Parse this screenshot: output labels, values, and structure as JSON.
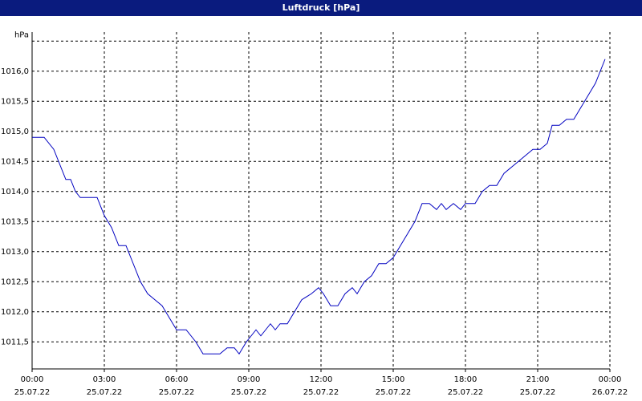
{
  "chart_data": {
    "type": "line",
    "title": "Luftdruck [hPa]",
    "x": [
      0,
      0.5,
      0.9,
      1.1,
      1.4,
      1.6,
      1.8,
      2.0,
      2.3,
      2.7,
      3.0,
      3.3,
      3.6,
      3.9,
      4.2,
      4.5,
      4.8,
      5.1,
      5.4,
      5.7,
      6.0,
      6.4,
      6.8,
      7.1,
      7.5,
      7.8,
      8.1,
      8.4,
      8.6,
      8.9,
      9.1,
      9.3,
      9.5,
      9.7,
      9.9,
      10.1,
      10.3,
      10.6,
      10.9,
      11.2,
      11.6,
      11.9,
      12.1,
      12.4,
      12.7,
      13.0,
      13.3,
      13.5,
      13.8,
      14.1,
      14.4,
      14.7,
      15.0,
      15.3,
      15.6,
      15.9,
      16.2,
      16.5,
      16.8,
      17.0,
      17.2,
      17.5,
      17.8,
      18.0,
      18.2,
      18.4,
      18.7,
      19.0,
      19.3,
      19.6,
      19.9,
      20.2,
      20.5,
      20.8,
      21.1,
      21.4,
      21.6,
      21.9,
      22.2,
      22.5,
      22.8,
      23.1,
      23.4,
      23.6,
      23.8
    ],
    "series": [
      {
        "name": "Luftdruck",
        "color": "#0000c0",
        "values": [
          1014.9,
          1014.9,
          1014.7,
          1014.5,
          1014.2,
          1014.2,
          1014.0,
          1013.9,
          1013.9,
          1013.9,
          1013.6,
          1013.4,
          1013.1,
          1013.1,
          1012.8,
          1012.5,
          1012.3,
          1012.2,
          1012.1,
          1011.9,
          1011.7,
          1011.7,
          1011.5,
          1011.3,
          1011.3,
          1011.3,
          1011.4,
          1011.4,
          1011.3,
          1011.5,
          1011.6,
          1011.7,
          1011.6,
          1011.7,
          1011.8,
          1011.7,
          1011.8,
          1011.8,
          1012.0,
          1012.2,
          1012.3,
          1012.4,
          1012.3,
          1012.1,
          1012.1,
          1012.3,
          1012.4,
          1012.3,
          1012.5,
          1012.6,
          1012.8,
          1012.8,
          1012.9,
          1013.1,
          1013.3,
          1013.5,
          1013.8,
          1013.8,
          1013.7,
          1013.8,
          1013.7,
          1013.8,
          1013.7,
          1013.8,
          1013.8,
          1013.8,
          1014.0,
          1014.1,
          1014.1,
          1014.3,
          1014.4,
          1014.5,
          1014.6,
          1014.7,
          1014.7,
          1014.8,
          1015.1,
          1015.1,
          1015.2,
          1015.2,
          1015.4,
          1015.6,
          1015.8,
          1016.0,
          1016.2
        ]
      }
    ],
    "xlim": [
      0,
      24
    ],
    "ylim": [
      1011.05,
      1016.65
    ],
    "xticks": [
      {
        "value": 0,
        "label": "00:00"
      },
      {
        "value": 3,
        "label": "03:00"
      },
      {
        "value": 6,
        "label": "06:00"
      },
      {
        "value": 9,
        "label": "09:00"
      },
      {
        "value": 12,
        "label": "12:00"
      },
      {
        "value": 15,
        "label": "15:00"
      },
      {
        "value": 18,
        "label": "18:00"
      },
      {
        "value": 21,
        "label": "21:00"
      },
      {
        "value": 24,
        "label": "00:00"
      }
    ],
    "xtick_dates": [
      "25.07.22",
      "25.07.22",
      "25.07.22",
      "25.07.22",
      "25.07.22",
      "25.07.22",
      "25.07.22",
      "25.07.22",
      "26.07.22"
    ],
    "yticks": [
      {
        "value": 1011.5,
        "label": "1011,5"
      },
      {
        "value": 1012,
        "label": "1012,0"
      },
      {
        "value": 1012.5,
        "label": "1012,5"
      },
      {
        "value": 1013,
        "label": "1013,0"
      },
      {
        "value": 1013.5,
        "label": "1013,5"
      },
      {
        "value": 1014,
        "label": "1014,0"
      },
      {
        "value": 1014.5,
        "label": "1014,5"
      },
      {
        "value": 1015,
        "label": "1015,0"
      },
      {
        "value": 1015.5,
        "label": "1015,5"
      },
      {
        "value": 1016,
        "label": "1016,0"
      },
      {
        "value": 1016.5,
        "label": "hPa"
      }
    ],
    "grid": true
  }
}
